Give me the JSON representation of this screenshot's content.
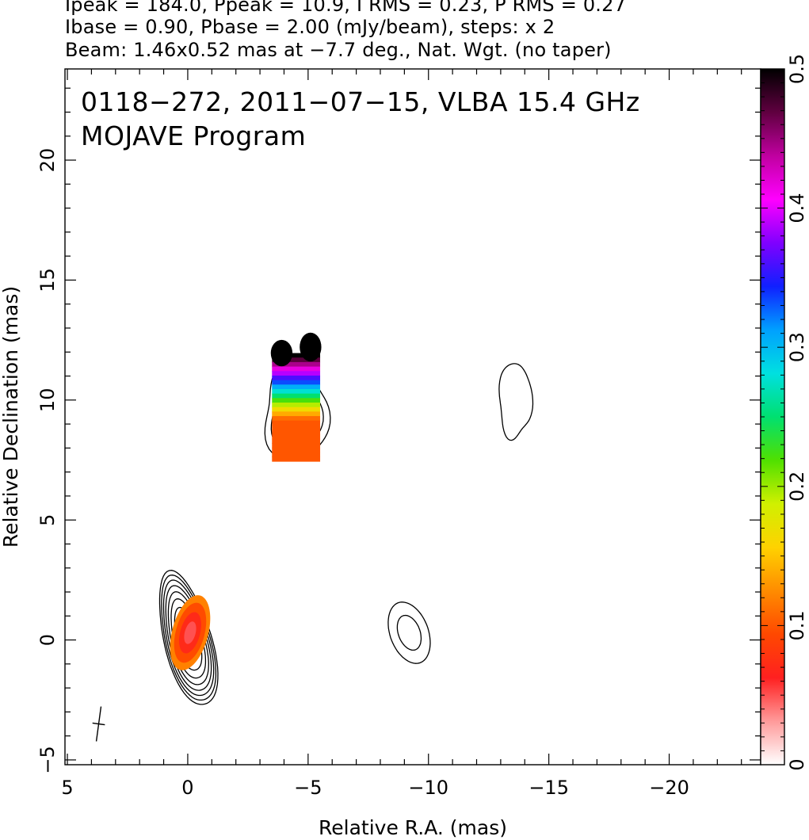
{
  "header": {
    "line1": "Ipeak = 184.0, Ppeak = 10.9, I RMS = 0.23, P RMS = 0.27",
    "line2": "Ibase = 0.90, Pbase = 2.00 (mJy/beam), steps: x 2",
    "line3": "Beam: 1.46x0.52 mas at −7.7 deg., Nat. Wgt. (no taper)"
  },
  "chart_data": {
    "type": "heatmap",
    "title": "0118−272, 2011−07−15, VLBA 15.4 GHz",
    "subtitle": "MOJAVE Program",
    "xlabel": "Relative R.A. (mas)",
    "ylabel": "Relative Declination (mas)",
    "xlim": [
      5.1,
      -23.8
    ],
    "ylim": [
      -5.2,
      23.8
    ],
    "x_ticks": [
      5,
      0,
      -5,
      -10,
      -15,
      -20
    ],
    "x_tick_labels": [
      "5",
      "0",
      "−5",
      "−10",
      "−15",
      "−20"
    ],
    "y_ticks": [
      -5,
      0,
      5,
      10,
      15,
      20
    ],
    "y_tick_labels": [
      "−5",
      "0",
      "5",
      "10",
      "15",
      "20"
    ],
    "colorbar": {
      "range": [
        0,
        0.5
      ],
      "ticks": [
        0,
        0.1,
        0.2,
        0.3,
        0.4,
        0.5
      ],
      "tick_labels": [
        "0",
        "0.1",
        "0.2",
        "0.3",
        "0.4",
        "0.5"
      ],
      "colors": [
        "#ffffff",
        "#ff9a9a",
        "#ff2020",
        "#ff4800",
        "#ff8c00",
        "#ffd200",
        "#d0f000",
        "#50e000",
        "#00e070",
        "#00e0e0",
        "#00a0ff",
        "#1020ff",
        "#8000ff",
        "#ff00ff",
        "#c000a0",
        "#600040",
        "#000000"
      ]
    },
    "contour_levels_mJy_per_beam": [
      0.9,
      1.8,
      3.6,
      7.2,
      14.4,
      28.8,
      57.6,
      115.2
    ],
    "total_intensity_components": [
      {
        "name": "core",
        "ra": 0.0,
        "dec": 0.0,
        "peak": 184.0,
        "major": 1.6,
        "minor": 0.55,
        "pa": 15
      },
      {
        "name": "jet",
        "ra": -4.5,
        "dec": 9.5,
        "peak": 6.0,
        "major": 2.0,
        "minor": 1.2,
        "pa": 0
      },
      {
        "name": "left image",
        "ra": -9.2,
        "dec": 0.3,
        "peak": 2.5,
        "major": 1.7,
        "minor": 1.0,
        "pa": 15
      },
      {
        "name": "upper right image",
        "ra": -13.6,
        "dec": 10.0,
        "peak": 1.7,
        "major": 2.5,
        "minor": 1.1,
        "pa": 0
      }
    ],
    "fractional_polarization_patches": [
      {
        "name": "core polarization",
        "ra": -0.1,
        "dec": 0.3,
        "value_range": [
          0.05,
          0.12
        ]
      },
      {
        "name": "jet polarization",
        "ra": -4.5,
        "dec": 9.8,
        "value_range": [
          0.1,
          0.5
        ]
      }
    ],
    "beam": {
      "major_mas": 1.46,
      "minor_mas": 0.52,
      "pa_deg": -7.7,
      "ra": 3.7,
      "dec": -3.5
    }
  }
}
